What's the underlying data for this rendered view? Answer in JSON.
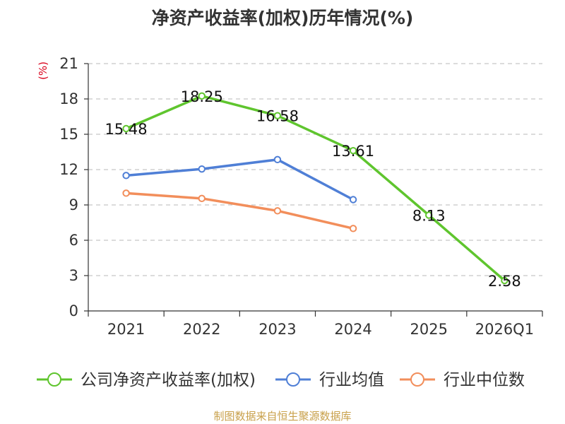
{
  "chart_data": {
    "type": "line",
    "title": "净资产收益率(加权)历年情况(%)",
    "ylabel": "(%)",
    "xlabel": "",
    "categories": [
      "2021",
      "2022",
      "2023",
      "2024",
      "2025",
      "2026Q1"
    ],
    "ylim": [
      0,
      21
    ],
    "yticks": [
      0,
      3,
      6,
      9,
      12,
      15,
      18,
      21
    ],
    "grid": true,
    "legend_position": "bottom",
    "series": [
      {
        "name": "公司净资产收益率(加权)",
        "color": "#5fc52e",
        "values": [
          15.48,
          18.25,
          16.58,
          13.61,
          8.13,
          2.58
        ],
        "labels": [
          "15.48",
          "18.25",
          "16.58",
          "13.61",
          "8.13",
          "2.58"
        ]
      },
      {
        "name": "行业均值",
        "color": "#4f7fd6",
        "values": [
          11.5,
          12.05,
          12.85,
          9.45,
          null,
          null
        ]
      },
      {
        "name": "行业中位数",
        "color": "#f28e5b",
        "values": [
          10.0,
          9.55,
          8.5,
          7.0,
          null,
          null
        ]
      }
    ]
  },
  "footer": "制图数据来自恒生聚源数据库"
}
